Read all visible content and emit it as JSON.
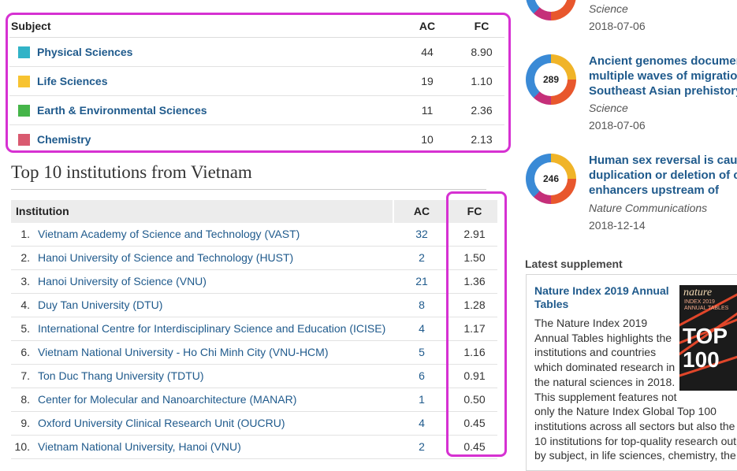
{
  "subjects": {
    "headers": {
      "subject": "Subject",
      "ac": "AC",
      "fc": "FC"
    },
    "rows": [
      {
        "name": "Physical Sciences",
        "ac": "44",
        "fc": "8.90",
        "color": "#31b3c7"
      },
      {
        "name": "Life Sciences",
        "ac": "19",
        "fc": "1.10",
        "color": "#f7c331"
      },
      {
        "name": "Earth & Environmental Sciences",
        "ac": "11",
        "fc": "2.36",
        "color": "#45b549"
      },
      {
        "name": "Chemistry",
        "ac": "10",
        "fc": "2.13",
        "color": "#d95a70"
      }
    ]
  },
  "institutions": {
    "title": "Top 10 institutions from Vietnam",
    "headers": {
      "institution": "Institution",
      "ac": "AC",
      "fc": "FC"
    },
    "rows": [
      {
        "rank": "1.",
        "name": "Vietnam Academy of Science and Technology (VAST)",
        "ac": "32",
        "fc": "2.91"
      },
      {
        "rank": "2.",
        "name": "Hanoi University of Science and Technology (HUST)",
        "ac": "2",
        "fc": "1.50"
      },
      {
        "rank": "3.",
        "name": "Hanoi University of Science (VNU)",
        "ac": "21",
        "fc": "1.36"
      },
      {
        "rank": "4.",
        "name": "Duy Tan University (DTU)",
        "ac": "8",
        "fc": "1.28"
      },
      {
        "rank": "5.",
        "name": "International Centre for Interdisciplinary Science and Education (ICISE)",
        "ac": "4",
        "fc": "1.17"
      },
      {
        "rank": "6.",
        "name": "Vietnam National University - Ho Chi Minh City (VNU-HCM)",
        "ac": "5",
        "fc": "1.16"
      },
      {
        "rank": "7.",
        "name": "Ton Duc Thang University (TDTU)",
        "ac": "6",
        "fc": "0.91"
      },
      {
        "rank": "8.",
        "name": "Center for Molecular and Nanoarchitecture (MANAR)",
        "ac": "1",
        "fc": "0.50"
      },
      {
        "rank": "9.",
        "name": "Oxford University Clinical Research Unit (OUCRU)",
        "ac": "4",
        "fc": "0.45"
      },
      {
        "rank": "10.",
        "name": "Vietnam National University, Hanoi (VNU)",
        "ac": "2",
        "fc": "0.45"
      }
    ]
  },
  "articles": [
    {
      "score": "",
      "title_lines": [],
      "journal": "Science",
      "date": "2018-07-06"
    },
    {
      "score": "289",
      "title_lines": [
        "Ancient genomes documen",
        "multiple waves of migratio",
        "Southeast Asian prehistory"
      ],
      "journal": "Science",
      "date": "2018-07-06"
    },
    {
      "score": "246",
      "title_lines": [
        "Human sex reversal is caus",
        "duplication or deletion of co",
        "enhancers upstream of"
      ],
      "journal": "Nature Communications",
      "date": "2018-12-14"
    }
  ],
  "supplement": {
    "label": "Latest supplement",
    "title": "Nature Index 2019 Annual Tables",
    "text_lines": [
      "The Nature Index 2019",
      "Annual Tables highlights the",
      "institutions and countries",
      "which dominated research in",
      "the natural sciences in 2018.",
      "This supplement features not",
      "only the Nature Index Global Top 100",
      "institutions across all sectors but also the t",
      "10 institutions for top-quality research outp",
      "by subject, in life sciences, chemistry, the"
    ],
    "cover": {
      "brand": "nature",
      "sub": "INDEX 2019 ANNUAL TABLES",
      "big": "TOP 100"
    }
  }
}
